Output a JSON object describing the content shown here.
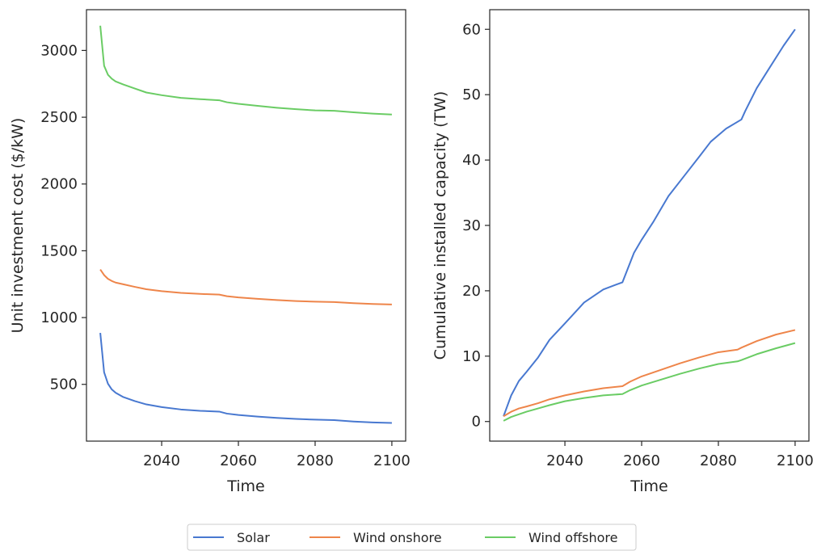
{
  "chart_data": [
    {
      "type": "line",
      "title": "",
      "xlabel": "Time",
      "ylabel": "Unit investment cost ($/kW)",
      "xlim": [
        2020.4,
        2103.6
      ],
      "ylim": [
        75,
        3305
      ],
      "xticks": [
        2040,
        2060,
        2080,
        2100
      ],
      "yticks": [
        500,
        1000,
        1500,
        2000,
        2500,
        3000
      ],
      "grid": false,
      "series": [
        {
          "name": "Solar",
          "color": "#4878d0",
          "x": [
            2024,
            2025,
            2026,
            2027,
            2028,
            2030,
            2033,
            2036,
            2040,
            2045,
            2050,
            2055,
            2057,
            2060,
            2065,
            2070,
            2075,
            2080,
            2085,
            2090,
            2095,
            2100
          ],
          "y": [
            885,
            590,
            505,
            462,
            437,
            405,
            375,
            350,
            330,
            312,
            302,
            296,
            281,
            271,
            259,
            249,
            241,
            236,
            232,
            222,
            215,
            211
          ]
        },
        {
          "name": "Wind onshore",
          "color": "#ee854a",
          "x": [
            2024,
            2025,
            2026,
            2027,
            2028,
            2030,
            2033,
            2036,
            2040,
            2045,
            2050,
            2055,
            2057,
            2060,
            2065,
            2070,
            2075,
            2080,
            2085,
            2090,
            2095,
            2100
          ],
          "y": [
            1360,
            1318,
            1290,
            1274,
            1262,
            1249,
            1230,
            1212,
            1198,
            1185,
            1177,
            1172,
            1160,
            1151,
            1140,
            1131,
            1124,
            1119,
            1116,
            1108,
            1102,
            1098
          ]
        },
        {
          "name": "Wind offshore",
          "color": "#6acc64",
          "x": [
            2024,
            2025,
            2026,
            2027,
            2028,
            2030,
            2033,
            2036,
            2040,
            2045,
            2050,
            2055,
            2057,
            2060,
            2065,
            2070,
            2075,
            2080,
            2085,
            2090,
            2095,
            2100
          ],
          "y": [
            3185,
            2885,
            2818,
            2788,
            2768,
            2745,
            2715,
            2685,
            2665,
            2645,
            2635,
            2627,
            2612,
            2600,
            2585,
            2571,
            2560,
            2551,
            2548,
            2537,
            2527,
            2520
          ]
        }
      ]
    },
    {
      "type": "line",
      "title": "",
      "xlabel": "Time",
      "ylabel": "Cumulative installed capacity (TW)",
      "xlim": [
        2020.4,
        2103.6
      ],
      "ylim": [
        -3,
        63
      ],
      "xticks": [
        2040,
        2060,
        2080,
        2100
      ],
      "yticks": [
        0,
        10,
        20,
        30,
        40,
        50,
        60
      ],
      "grid": false,
      "series": [
        {
          "name": "Solar",
          "color": "#4878d0",
          "x": [
            2024,
            2026,
            2028,
            2030,
            2033,
            2036,
            2040,
            2045,
            2050,
            2055,
            2056,
            2058,
            2060,
            2063,
            2067,
            2071,
            2075,
            2078,
            2082,
            2086,
            2087,
            2090,
            2093,
            2097,
            2100
          ],
          "y": [
            0.8,
            4.0,
            6.2,
            7.6,
            9.8,
            12.5,
            15.0,
            18.2,
            20.2,
            21.3,
            22.8,
            25.8,
            27.8,
            30.5,
            34.5,
            37.5,
            40.5,
            42.8,
            44.8,
            46.2,
            47.5,
            51.0,
            53.8,
            57.5,
            60.0
          ]
        },
        {
          "name": "Wind onshore",
          "color": "#ee854a",
          "x": [
            2024,
            2026,
            2028,
            2030,
            2033,
            2036,
            2040,
            2045,
            2050,
            2055,
            2057,
            2060,
            2065,
            2070,
            2075,
            2080,
            2085,
            2086,
            2090,
            2095,
            2100
          ],
          "y": [
            0.8,
            1.5,
            2.0,
            2.3,
            2.8,
            3.4,
            4.0,
            4.6,
            5.1,
            5.4,
            6.1,
            6.9,
            7.9,
            8.9,
            9.8,
            10.6,
            11.0,
            11.3,
            12.3,
            13.3,
            14.0
          ]
        },
        {
          "name": "Wind offshore",
          "color": "#6acc64",
          "x": [
            2024,
            2026,
            2028,
            2030,
            2033,
            2036,
            2040,
            2045,
            2050,
            2055,
            2057,
            2060,
            2065,
            2070,
            2075,
            2080,
            2085,
            2086,
            2090,
            2095,
            2100
          ],
          "y": [
            0.1,
            0.7,
            1.1,
            1.5,
            2.0,
            2.5,
            3.1,
            3.6,
            4.0,
            4.2,
            4.8,
            5.5,
            6.4,
            7.3,
            8.1,
            8.8,
            9.2,
            9.4,
            10.3,
            11.2,
            12.0
          ]
        }
      ]
    }
  ],
  "legend": {
    "placement": "bottom-center",
    "entries": [
      {
        "label": "Solar",
        "color": "#4878d0"
      },
      {
        "label": "Wind onshore",
        "color": "#ee854a"
      },
      {
        "label": "Wind offshore",
        "color": "#6acc64"
      }
    ]
  }
}
